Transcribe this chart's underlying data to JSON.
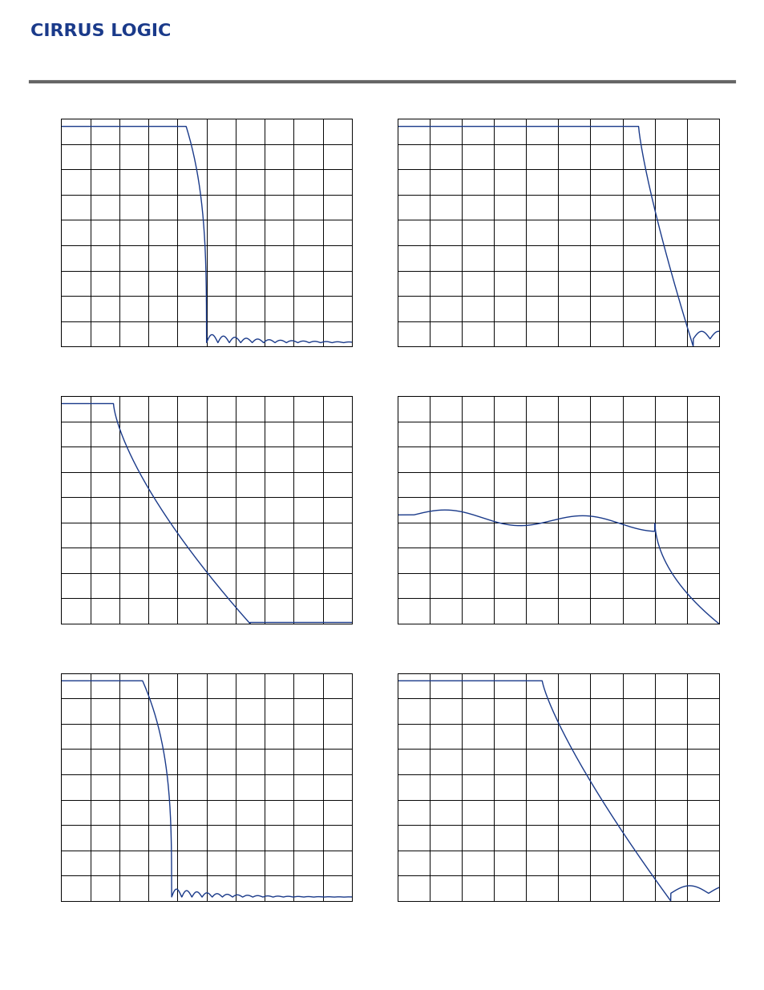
{
  "background_color": "#ffffff",
  "header_line_color": "#666666",
  "plot_line_color": "#1a3a8a",
  "grid_color": "#000000",
  "grid_rows": 9,
  "grid_cols": 10,
  "plots": [
    {
      "type": "stopband_rejection_single",
      "row": 0,
      "col": 0
    },
    {
      "type": "transition_band_single",
      "row": 0,
      "col": 1
    },
    {
      "type": "transition_band2_single",
      "row": 1,
      "col": 0
    },
    {
      "type": "passband_ripple_single",
      "row": 1,
      "col": 1
    },
    {
      "type": "stopband_rejection_double",
      "row": 2,
      "col": 0
    },
    {
      "type": "transition_band_double",
      "row": 2,
      "col": 1
    }
  ]
}
